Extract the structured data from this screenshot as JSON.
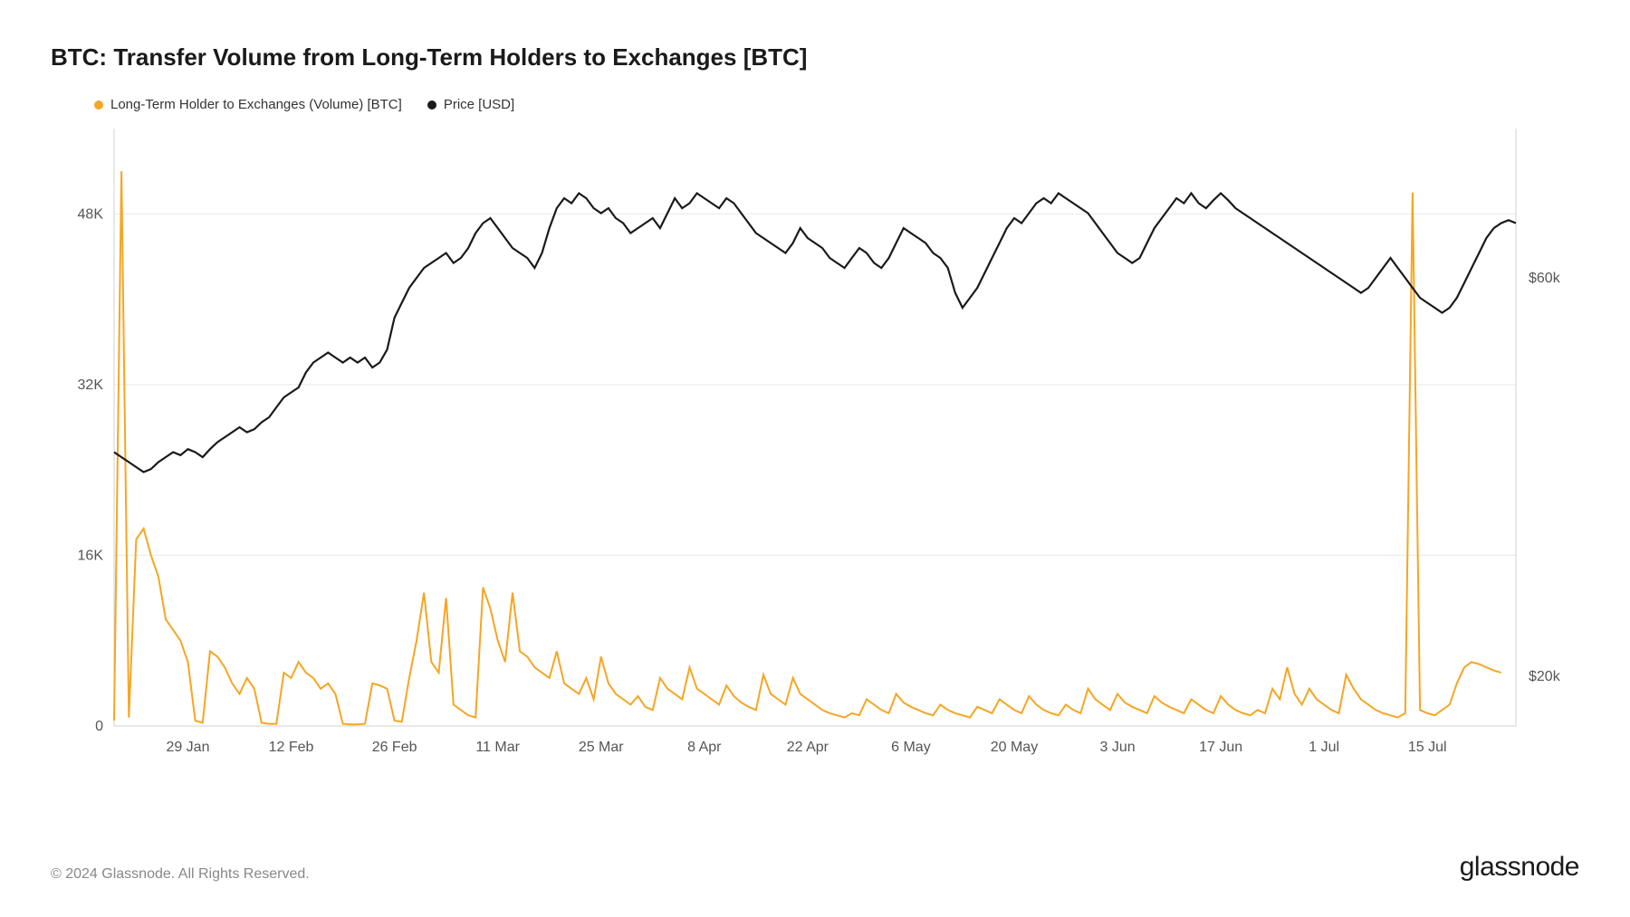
{
  "title": "BTC: Transfer Volume from Long-Term Holders to Exchanges [BTC]",
  "legend": {
    "volume": {
      "label": "Long-Term Holder to Exchanges (Volume) [BTC]",
      "color": "#f5a623"
    },
    "price": {
      "label": "Price [USD]",
      "color": "#1a1a1a"
    }
  },
  "chart": {
    "type": "line-dual-axis",
    "background_color": "#ffffff",
    "grid_color": "#e8e8e8",
    "border_color": "#d0d0d0",
    "left_axis": {
      "min": 0,
      "max": 56000,
      "ticks": [
        0,
        16000,
        32000,
        48000
      ],
      "tick_labels": [
        "0",
        "16K",
        "32K",
        "48K"
      ],
      "label_fontsize": 16
    },
    "right_axis": {
      "min": 15000,
      "max": 75000,
      "ticks": [
        20000,
        60000
      ],
      "tick_labels": [
        "$20k",
        "$60k"
      ],
      "label_fontsize": 16
    },
    "x_axis": {
      "min": 0,
      "max": 190,
      "tick_positions": [
        10,
        24,
        38,
        52,
        66,
        80,
        94,
        108,
        122,
        136,
        150,
        164,
        178
      ],
      "tick_labels": [
        "29 Jan",
        "12 Feb",
        "26 Feb",
        "11 Mar",
        "25 Mar",
        "8 Apr",
        "22 Apr",
        "6 May",
        "20 May",
        "3 Jun",
        "17 Jun",
        "1 Jul",
        "15 Jul"
      ],
      "label_fontsize": 16
    },
    "series": {
      "volume": {
        "color": "#f5a623",
        "line_width": 2,
        "data": [
          500,
          52000,
          800,
          17500,
          18500,
          16000,
          14000,
          10000,
          9000,
          8000,
          6000,
          500,
          300,
          7000,
          6500,
          5500,
          4000,
          3000,
          4500,
          3500,
          300,
          200,
          200,
          5000,
          4500,
          6000,
          5000,
          4500,
          3500,
          4000,
          3000,
          200,
          150,
          150,
          200,
          4000,
          3800,
          3500,
          500,
          400,
          4500,
          8000,
          12500,
          6000,
          5000,
          12000,
          2000,
          1500,
          1000,
          800,
          13000,
          11000,
          8000,
          6000,
          12500,
          7000,
          6500,
          5500,
          5000,
          4500,
          7000,
          4000,
          3500,
          3000,
          4500,
          2500,
          6500,
          4000,
          3000,
          2500,
          2000,
          2800,
          1800,
          1500,
          4500,
          3500,
          3000,
          2500,
          5500,
          3500,
          3000,
          2500,
          2000,
          3800,
          2800,
          2200,
          1800,
          1500,
          4800,
          3000,
          2500,
          2000,
          4500,
          3000,
          2500,
          2000,
          1500,
          1200,
          1000,
          800,
          1200,
          1000,
          2500,
          2000,
          1500,
          1200,
          3000,
          2200,
          1800,
          1500,
          1200,
          1000,
          2000,
          1500,
          1200,
          1000,
          800,
          1800,
          1500,
          1200,
          2500,
          2000,
          1500,
          1200,
          2800,
          2000,
          1500,
          1200,
          1000,
          2000,
          1500,
          1200,
          3500,
          2500,
          2000,
          1500,
          3000,
          2200,
          1800,
          1500,
          1200,
          2800,
          2200,
          1800,
          1500,
          1200,
          2500,
          2000,
          1500,
          1200,
          2800,
          2000,
          1500,
          1200,
          1000,
          1500,
          1200,
          3500,
          2500,
          5500,
          3000,
          2000,
          3500,
          2500,
          2000,
          1500,
          1200,
          4800,
          3500,
          2500,
          2000,
          1500,
          1200,
          1000,
          800,
          1200,
          50000,
          1500,
          1200,
          1000,
          1500,
          2000,
          4000,
          5500,
          6000,
          5800,
          5500,
          5200,
          5000
        ]
      },
      "price": {
        "color": "#1a1a1a",
        "line_width": 2.2,
        "data": [
          42500,
          42000,
          41500,
          41000,
          40500,
          40800,
          41500,
          42000,
          42500,
          42200,
          42800,
          42500,
          42000,
          42800,
          43500,
          44000,
          44500,
          45000,
          44500,
          44800,
          45500,
          46000,
          47000,
          48000,
          48500,
          49000,
          50500,
          51500,
          52000,
          52500,
          52000,
          51500,
          52000,
          51500,
          52000,
          51000,
          51500,
          52800,
          56000,
          57500,
          59000,
          60000,
          61000,
          61500,
          62000,
          62500,
          61500,
          62000,
          63000,
          64500,
          65500,
          66000,
          65000,
          64000,
          63000,
          62500,
          62000,
          61000,
          62500,
          65000,
          67000,
          68000,
          67500,
          68500,
          68000,
          67000,
          66500,
          67000,
          66000,
          65500,
          64500,
          65000,
          65500,
          66000,
          65000,
          66500,
          68000,
          67000,
          67500,
          68500,
          68000,
          67500,
          67000,
          68000,
          67500,
          66500,
          65500,
          64500,
          64000,
          63500,
          63000,
          62500,
          63500,
          65000,
          64000,
          63500,
          63000,
          62000,
          61500,
          61000,
          62000,
          63000,
          62500,
          61500,
          61000,
          62000,
          63500,
          65000,
          64500,
          64000,
          63500,
          62500,
          62000,
          61000,
          58500,
          57000,
          58000,
          59000,
          60500,
          62000,
          63500,
          65000,
          66000,
          65500,
          66500,
          67500,
          68000,
          67500,
          68500,
          68000,
          67500,
          67000,
          66500,
          65500,
          64500,
          63500,
          62500,
          62000,
          61500,
          62000,
          63500,
          65000,
          66000,
          67000,
          68000,
          67500,
          68500,
          67500,
          67000,
          67800,
          68500,
          67800,
          67000,
          66500,
          66000,
          65500,
          65000,
          64500,
          64000,
          63500,
          63000,
          62500,
          62000,
          61500,
          61000,
          60500,
          60000,
          59500,
          59000,
          58500,
          59000,
          60000,
          61000,
          62000,
          61000,
          60000,
          59000,
          58000,
          57500,
          57000,
          56500,
          57000,
          58000,
          59500,
          61000,
          62500,
          64000,
          65000,
          65500,
          65800,
          65500
        ]
      }
    }
  },
  "footer": {
    "copyright": "© 2024 Glassnode. All Rights Reserved.",
    "brand": "glassnode"
  }
}
